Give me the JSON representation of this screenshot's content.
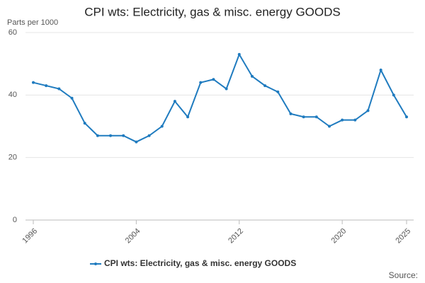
{
  "chart_data": {
    "type": "line",
    "title": "CPI wts: Electricity, gas & misc. energy GOODS",
    "y_label": "Parts per 1000",
    "source": "Source:",
    "x": [
      1996,
      1997,
      1998,
      1999,
      2000,
      2001,
      2002,
      2003,
      2004,
      2005,
      2006,
      2007,
      2008,
      2009,
      2010,
      2011,
      2012,
      2013,
      2014,
      2015,
      2016,
      2017,
      2018,
      2019,
      2020,
      2021,
      2022,
      2023,
      2024,
      2025
    ],
    "series": [
      {
        "name": "CPI wts: Electricity, gas & misc. energy GOODS",
        "color": "#1f7bbf",
        "values": [
          44,
          43,
          42,
          39,
          31,
          27,
          27,
          27,
          25,
          27,
          30,
          38,
          33,
          44,
          45,
          42,
          53,
          46,
          43,
          41,
          34,
          33,
          33,
          30,
          32,
          32,
          35,
          48,
          40,
          33
        ]
      }
    ],
    "xlim": [
      1996,
      2025
    ],
    "xticks": [
      1996,
      2004,
      2012,
      2020,
      2025
    ],
    "ylim": [
      0,
      60
    ],
    "yticks": [
      0,
      20,
      40,
      60
    ],
    "grid": true
  }
}
